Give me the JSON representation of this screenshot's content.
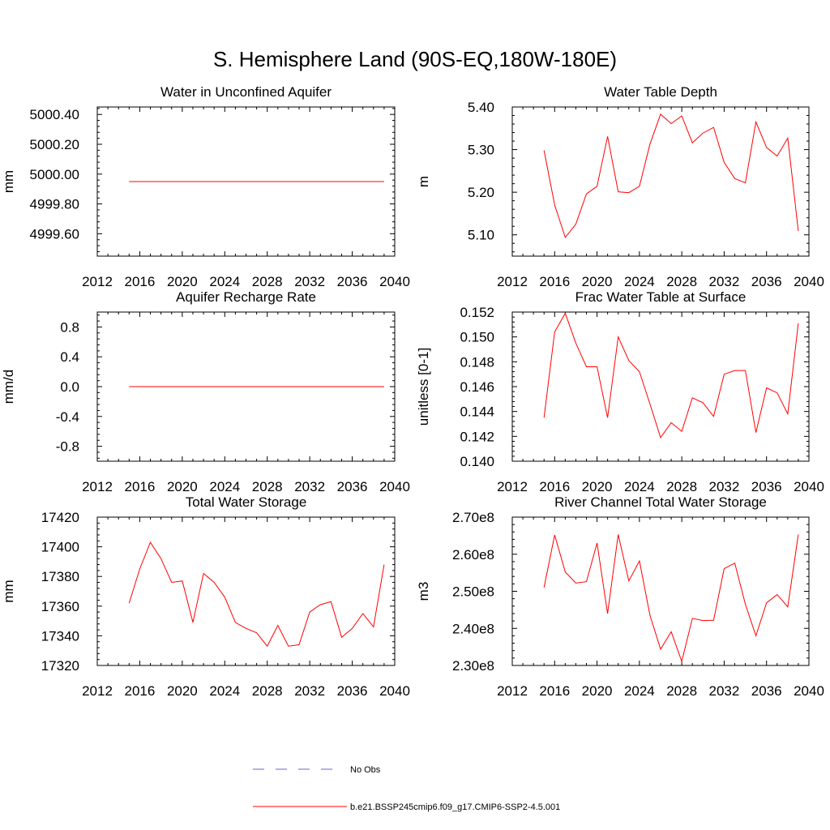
{
  "page": {
    "title": "S. Hemisphere Land (90S-EQ,180W-180E)"
  },
  "legend": {
    "items": [
      {
        "label": "No Obs",
        "color": "#6666cc",
        "dash": true
      },
      {
        "label": "b.e21.BSSP245cmip6.f09_g17.CMIP6-SSP2-4.5.001",
        "color": "#ff0000",
        "dash": false
      }
    ]
  },
  "colors": {
    "series": "#ff0000",
    "obs": "#6666cc"
  },
  "chart_data": [
    {
      "type": "line",
      "title": "Water in Unconfined Aquifer",
      "ylabel": "mm",
      "xlim": [
        2012,
        2040
      ],
      "xticks": [
        2012,
        2016,
        2020,
        2024,
        2028,
        2032,
        2036,
        2040
      ],
      "xtick_labels": [
        "2012",
        "2016",
        "2020",
        "2024",
        "2028",
        "2032",
        "2036",
        "2040"
      ],
      "ylim": [
        4999.45,
        5000.45
      ],
      "yticks": [
        4999.6,
        4999.8,
        5000.0,
        5000.2,
        5000.4
      ],
      "ytick_labels": [
        "4999.60",
        "4999.80",
        "5000.00",
        "5000.20",
        "5000.40"
      ],
      "x": [
        2015,
        2039
      ],
      "series": [
        {
          "values": [
            4999.95,
            4999.95
          ]
        }
      ]
    },
    {
      "type": "line",
      "title": "Water Table Depth",
      "ylabel": "m",
      "xlim": [
        2012,
        2040
      ],
      "xticks": [
        2012,
        2016,
        2020,
        2024,
        2028,
        2032,
        2036,
        2040
      ],
      "xtick_labels": [
        "2012",
        "2016",
        "2020",
        "2024",
        "2028",
        "2032",
        "2036",
        "2040"
      ],
      "ylim": [
        5.05,
        5.4
      ],
      "yticks": [
        5.1,
        5.2,
        5.3,
        5.4
      ],
      "ytick_labels": [
        "5.10",
        "5.20",
        "5.30",
        "5.40"
      ],
      "x": [
        2015,
        2016,
        2017,
        2018,
        2019,
        2020,
        2021,
        2022,
        2023,
        2024,
        2025,
        2026,
        2027,
        2028,
        2029,
        2030,
        2031,
        2032,
        2033,
        2034,
        2035,
        2036,
        2037,
        2038,
        2039
      ],
      "series": [
        {
          "values": [
            5.298,
            5.17,
            5.094,
            5.125,
            5.196,
            5.214,
            5.331,
            5.201,
            5.199,
            5.214,
            5.313,
            5.383,
            5.361,
            5.379,
            5.316,
            5.339,
            5.352,
            5.27,
            5.232,
            5.222,
            5.365,
            5.305,
            5.285,
            5.327,
            5.109
          ]
        }
      ]
    },
    {
      "type": "line",
      "title": "Aquifer Recharge Rate",
      "ylabel": "mm/d",
      "xlim": [
        2012,
        2040
      ],
      "xticks": [
        2012,
        2016,
        2020,
        2024,
        2028,
        2032,
        2036,
        2040
      ],
      "xtick_labels": [
        "2012",
        "2016",
        "2020",
        "2024",
        "2028",
        "2032",
        "2036",
        "2040"
      ],
      "ylim": [
        -1.0,
        1.0
      ],
      "yticks": [
        -0.8,
        -0.4,
        0.0,
        0.4,
        0.8
      ],
      "ytick_labels": [
        "-0.8",
        "-0.4",
        "0.0",
        "0.4",
        "0.8"
      ],
      "x": [
        2015,
        2039
      ],
      "series": [
        {
          "values": [
            0.0,
            0.0
          ]
        }
      ]
    },
    {
      "type": "line",
      "title": "Frac Water Table at Surface",
      "ylabel": "unitless [0-1]",
      "xlim": [
        2012,
        2040
      ],
      "xticks": [
        2012,
        2016,
        2020,
        2024,
        2028,
        2032,
        2036,
        2040
      ],
      "xtick_labels": [
        "2012",
        "2016",
        "2020",
        "2024",
        "2028",
        "2032",
        "2036",
        "2040"
      ],
      "ylim": [
        0.14,
        0.152
      ],
      "yticks": [
        0.14,
        0.142,
        0.144,
        0.146,
        0.148,
        0.15,
        0.152
      ],
      "ytick_labels": [
        "0.140",
        "0.142",
        "0.144",
        "0.146",
        "0.148",
        "0.150",
        "0.152"
      ],
      "x": [
        2015,
        2016,
        2017,
        2018,
        2019,
        2020,
        2021,
        2022,
        2023,
        2024,
        2025,
        2026,
        2027,
        2028,
        2029,
        2030,
        2031,
        2032,
        2033,
        2034,
        2035,
        2036,
        2037,
        2038,
        2039
      ],
      "series": [
        {
          "values": [
            0.1435,
            0.1504,
            0.1519,
            0.1495,
            0.1476,
            0.1476,
            0.1435,
            0.15,
            0.1481,
            0.1472,
            0.1446,
            0.1419,
            0.1431,
            0.1424,
            0.1451,
            0.1447,
            0.1436,
            0.147,
            0.1473,
            0.1473,
            0.1423,
            0.1459,
            0.1455,
            0.1438,
            0.1511
          ]
        }
      ]
    },
    {
      "type": "line",
      "title": "Total Water Storage",
      "ylabel": "mm",
      "xlim": [
        2012,
        2040
      ],
      "xticks": [
        2012,
        2016,
        2020,
        2024,
        2028,
        2032,
        2036,
        2040
      ],
      "xtick_labels": [
        "2012",
        "2016",
        "2020",
        "2024",
        "2028",
        "2032",
        "2036",
        "2040"
      ],
      "ylim": [
        17320,
        17420
      ],
      "yticks": [
        17320,
        17340,
        17360,
        17380,
        17400,
        17420
      ],
      "ytick_labels": [
        "17320",
        "17340",
        "17360",
        "17380",
        "17400",
        "17420"
      ],
      "x": [
        2015,
        2016,
        2017,
        2018,
        2019,
        2020,
        2021,
        2022,
        2023,
        2024,
        2025,
        2026,
        2027,
        2028,
        2029,
        2030,
        2031,
        2032,
        2033,
        2034,
        2035,
        2036,
        2037,
        2038,
        2039
      ],
      "series": [
        {
          "values": [
            17362,
            17385,
            17403,
            17392,
            17376,
            17377,
            17349,
            17382,
            17376,
            17366,
            17349,
            17345,
            17342,
            17333,
            17347,
            17333,
            17334,
            17356,
            17361,
            17363,
            17339,
            17345,
            17355,
            17346,
            17388
          ]
        }
      ]
    },
    {
      "type": "line",
      "title": "River Channel Total Water Storage",
      "ylabel": "m3",
      "xlim": [
        2012,
        2040
      ],
      "xticks": [
        2012,
        2016,
        2020,
        2024,
        2028,
        2032,
        2036,
        2040
      ],
      "xtick_labels": [
        "2012",
        "2016",
        "2020",
        "2024",
        "2028",
        "2032",
        "2036",
        "2040"
      ],
      "ylim": [
        230000000,
        270000000
      ],
      "yticks": [
        230000000,
        240000000,
        250000000,
        260000000,
        270000000
      ],
      "ytick_labels": [
        "2.30e8",
        "2.40e8",
        "2.50e8",
        "2.60e8",
        "2.70e8"
      ],
      "x": [
        2015,
        2016,
        2017,
        2018,
        2019,
        2020,
        2021,
        2022,
        2023,
        2024,
        2025,
        2026,
        2027,
        2028,
        2029,
        2030,
        2031,
        2032,
        2033,
        2034,
        2035,
        2036,
        2037,
        2038,
        2039
      ],
      "series": [
        {
          "values": [
            251000000,
            265200000,
            255200000,
            252200000,
            252600000,
            263000000,
            244000000,
            265300000,
            252800000,
            258200000,
            243500000,
            234400000,
            239100000,
            231100000,
            242700000,
            242100000,
            242200000,
            256100000,
            257600000,
            246500000,
            238000000,
            246900000,
            249100000,
            245800000,
            265300000
          ]
        }
      ]
    }
  ]
}
